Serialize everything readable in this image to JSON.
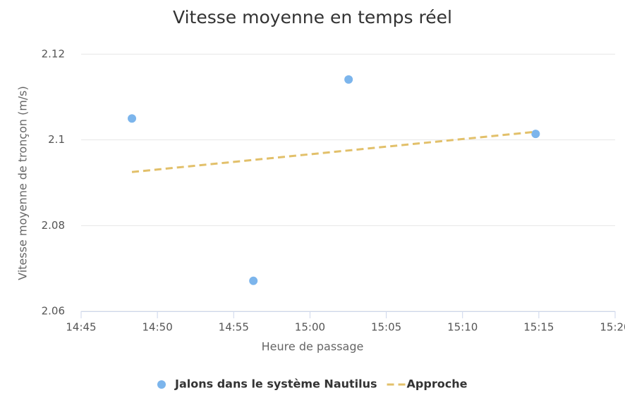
{
  "chart_data": {
    "type": "scatter",
    "title": "Vitesse moyenne en temps réel",
    "x_label": "Heure de passage",
    "y_label": "Vitesse moyenne de tronçon (m/s)",
    "xlim": [
      885,
      920
    ],
    "xticks": [
      {
        "value": 885,
        "label": "14:45"
      },
      {
        "value": 890,
        "label": "14:50"
      },
      {
        "value": 895,
        "label": "14:55"
      },
      {
        "value": 900,
        "label": "15:00"
      },
      {
        "value": 905,
        "label": "15:05"
      },
      {
        "value": 910,
        "label": "15:10"
      },
      {
        "value": 915,
        "label": "15:15"
      },
      {
        "value": 920,
        "label": "15:20"
      }
    ],
    "ylim": [
      2.06,
      2.12
    ],
    "yticks": [
      2.06,
      2.08,
      2.1,
      2.12
    ],
    "grid": true,
    "series": [
      {
        "name": "Jalons dans le système Nautilus",
        "type": "scatter",
        "color": "#7cb5ec",
        "x": [
          888.33,
          896.29,
          902.53,
          914.79
        ],
        "values": [
          2.105,
          2.0671,
          2.1141,
          2.1014
        ]
      },
      {
        "name": "Approche",
        "type": "line",
        "dashed": true,
        "color": "#e2c06a",
        "x": [
          888.33,
          914.79
        ],
        "values": [
          2.0925,
          2.1019
        ]
      }
    ]
  }
}
